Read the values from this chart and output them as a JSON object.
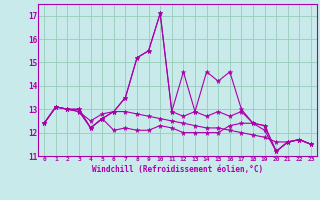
{
  "xlabel": "Windchill (Refroidissement éolien,°C)",
  "xlim_min": -0.5,
  "xlim_max": 23.5,
  "ylim_min": 11.0,
  "ylim_max": 17.5,
  "yticks": [
    11,
    12,
    13,
    14,
    15,
    16,
    17
  ],
  "xticks": [
    0,
    1,
    2,
    3,
    4,
    5,
    6,
    7,
    8,
    9,
    10,
    11,
    12,
    13,
    14,
    15,
    16,
    17,
    18,
    19,
    20,
    21,
    22,
    23
  ],
  "bg_color": "#c8eaea",
  "line_color": "#aa00aa",
  "grid_color": "#99ccbb",
  "series": [
    [
      12.4,
      13.1,
      13.0,
      13.0,
      12.2,
      12.6,
      12.9,
      13.5,
      15.2,
      15.5,
      17.1,
      12.9,
      14.6,
      12.9,
      14.6,
      14.2,
      14.6,
      13.0,
      12.4,
      12.3,
      11.2,
      11.6,
      11.7,
      11.5
    ],
    [
      12.4,
      13.1,
      13.0,
      13.0,
      12.2,
      12.6,
      12.9,
      13.5,
      15.2,
      15.5,
      17.1,
      12.9,
      12.7,
      12.9,
      12.7,
      12.9,
      12.7,
      12.9,
      12.4,
      12.3,
      11.2,
      11.6,
      11.7,
      11.5
    ],
    [
      12.4,
      13.1,
      13.0,
      12.9,
      12.5,
      12.8,
      12.9,
      12.9,
      12.8,
      12.7,
      12.6,
      12.5,
      12.4,
      12.3,
      12.2,
      12.2,
      12.1,
      12.0,
      11.9,
      11.8,
      11.6,
      11.6,
      11.7,
      11.5
    ],
    [
      12.4,
      13.1,
      13.0,
      12.9,
      12.2,
      12.6,
      12.1,
      12.2,
      12.1,
      12.1,
      12.3,
      12.2,
      12.0,
      12.0,
      12.0,
      12.0,
      12.3,
      12.4,
      12.4,
      12.1,
      11.2,
      11.6,
      11.7,
      11.5
    ]
  ]
}
